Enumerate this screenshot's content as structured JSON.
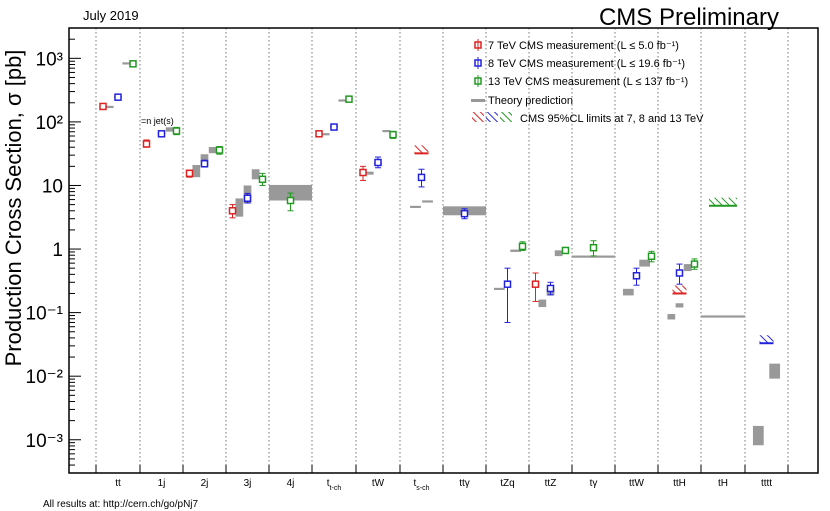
{
  "header": {
    "date": "July 2019",
    "title": "CMS Preliminary",
    "footer": "All results at: http://cern.ch/go/pNj7"
  },
  "colors": {
    "tev7": "#dd2222",
    "tev8": "#2222dd",
    "tev13": "#229922",
    "theory": "#999999",
    "frame": "#000000"
  },
  "legend": {
    "items": [
      {
        "key": "tev7",
        "label": "7 TeV CMS measurement (L ≤ 5.0 fb⁻¹)"
      },
      {
        "key": "tev8",
        "label": "8 TeV CMS measurement (L ≤ 19.6 fb⁻¹)"
      },
      {
        "key": "tev13",
        "label": "13 TeV CMS measurement (L ≤ 137 fb⁻¹)"
      },
      {
        "key": "theory",
        "label": "Theory prediction"
      },
      {
        "key": "limits",
        "label": "CMS 95%CL limits at 7, 8 and 13 TeV"
      }
    ],
    "placement": "top-right"
  },
  "chart_data": {
    "type": "scatter",
    "ylabel": "Production Cross Section,  σ [pb]",
    "yscale": "log",
    "ylim": [
      0.0003,
      3000
    ],
    "yticks": [
      "10⁻³",
      "10⁻²",
      "10⁻¹",
      "1",
      "10",
      "10²",
      "10³"
    ],
    "categories": [
      "tt",
      "1j",
      "2j",
      "3j",
      "4j",
      "tt-ch",
      "tW",
      "ts-ch",
      "ttγ",
      "tZq",
      "ttZ",
      "tγ",
      "ttW",
      "ttH",
      "tH",
      "tttt"
    ],
    "category_main": [
      "tt",
      "1j",
      "2j",
      "3j",
      "4j",
      "t",
      "tW",
      "t",
      "ttγ",
      "tZq",
      "ttZ",
      "tγ",
      "ttW",
      "ttH",
      "tH",
      "tttt"
    ],
    "category_sub": [
      "",
      "",
      "",
      "",
      "",
      "t-ch",
      "",
      "s-ch",
      "",
      "",
      "",
      "",
      "",
      "",
      "",
      ""
    ],
    "annotation": "=n jet(s)",
    "measurements": [
      {
        "cat": 0,
        "energy": "tev7",
        "value": 175,
        "up": 185,
        "down": 165
      },
      {
        "cat": 0,
        "energy": "tev8",
        "value": 245,
        "up": 260,
        "down": 232
      },
      {
        "cat": 0,
        "energy": "tev13",
        "value": 820,
        "up": 870,
        "down": 770
      },
      {
        "cat": 1,
        "energy": "tev7",
        "value": 45,
        "up": 52,
        "down": 40
      },
      {
        "cat": 1,
        "energy": "tev8",
        "value": 65,
        "up": 71,
        "down": 59
      },
      {
        "cat": 1,
        "energy": "tev13",
        "value": 72,
        "up": 82,
        "down": 63
      },
      {
        "cat": 2,
        "energy": "tev7",
        "value": 15.5,
        "up": 17.5,
        "down": 13.5
      },
      {
        "cat": 2,
        "energy": "tev8",
        "value": 22,
        "up": 25,
        "down": 19.5
      },
      {
        "cat": 2,
        "energy": "tev13",
        "value": 36,
        "up": 41,
        "down": 31
      },
      {
        "cat": 3,
        "energy": "tev7",
        "value": 4.0,
        "up": 5.0,
        "down": 3.1
      },
      {
        "cat": 3,
        "energy": "tev8",
        "value": 6.3,
        "up": 7.5,
        "down": 5.3
      },
      {
        "cat": 3,
        "energy": "tev13",
        "value": 12.5,
        "up": 15.5,
        "down": 10
      },
      {
        "cat": 4,
        "energy": "tev13",
        "value": 5.8,
        "up": 7.6,
        "down": 4.0
      },
      {
        "cat": 5,
        "energy": "tev7",
        "value": 65,
        "up": 71,
        "down": 59
      },
      {
        "cat": 5,
        "energy": "tev8",
        "value": 83,
        "up": 90,
        "down": 76
      },
      {
        "cat": 5,
        "energy": "tev13",
        "value": 228,
        "up": 250,
        "down": 205
      },
      {
        "cat": 6,
        "energy": "tev7",
        "value": 16,
        "up": 20,
        "down": 12
      },
      {
        "cat": 6,
        "energy": "tev8",
        "value": 23,
        "up": 28,
        "down": 19
      },
      {
        "cat": 6,
        "energy": "tev13",
        "value": 63,
        "up": 71,
        "down": 55
      },
      {
        "cat": 7,
        "energy": "tev8",
        "value": 13.4,
        "up": 18,
        "down": 9.5
      },
      {
        "cat": 8,
        "energy": "tev8",
        "value": 3.6,
        "up": 4.3,
        "down": 3.0
      },
      {
        "cat": 9,
        "energy": "tev8",
        "value": 0.28,
        "up": 0.5,
        "down": 0.07
      },
      {
        "cat": 9,
        "energy": "tev13",
        "value": 1.1,
        "up": 1.3,
        "down": 0.95
      },
      {
        "cat": 10,
        "energy": "tev7",
        "value": 0.28,
        "up": 0.42,
        "down": 0.15
      },
      {
        "cat": 10,
        "energy": "tev8",
        "value": 0.24,
        "up": 0.3,
        "down": 0.19
      },
      {
        "cat": 10,
        "energy": "tev13",
        "value": 0.95,
        "up": 1.05,
        "down": 0.86
      },
      {
        "cat": 11,
        "energy": "tev13",
        "value": 1.05,
        "up": 1.35,
        "down": 0.78
      },
      {
        "cat": 12,
        "energy": "tev8",
        "value": 0.38,
        "up": 0.5,
        "down": 0.27
      },
      {
        "cat": 12,
        "energy": "tev13",
        "value": 0.77,
        "up": 0.92,
        "down": 0.63
      },
      {
        "cat": 13,
        "energy": "tev8",
        "value": 0.42,
        "up": 0.58,
        "down": 0.28
      },
      {
        "cat": 13,
        "energy": "tev13",
        "value": 0.58,
        "up": 0.7,
        "down": 0.48
      }
    ],
    "limits": [
      {
        "cat": 7,
        "energy": "tev7",
        "value": 32
      },
      {
        "cat": 13,
        "energy": "tev7",
        "value": 0.2
      },
      {
        "cat": 14,
        "energy": "tev13",
        "value": 4.8
      },
      {
        "cat": 15,
        "energy": "tev8",
        "value": 0.033
      }
    ],
    "theory": [
      {
        "cat": 0,
        "offset": -0.38,
        "width": 0.36,
        "value": 172,
        "up": 175,
        "down": 169
      },
      {
        "cat": 0,
        "offset": 0.0,
        "width": 0.36,
        "value": 247,
        "up": 252,
        "down": 242
      },
      {
        "cat": 0,
        "offset": 0.38,
        "width": 0.36,
        "value": 832,
        "up": 850,
        "down": 815
      },
      {
        "cat": 1,
        "offset": 0.0,
        "width": 0.36,
        "value": 66,
        "up": 68,
        "down": 64
      },
      {
        "cat": 1,
        "offset": 0.38,
        "width": 0.36,
        "value": 76,
        "up": 82,
        "down": 70
      },
      {
        "cat": 2,
        "offset": -0.38,
        "width": 0.36,
        "value": 16.5,
        "up": 21,
        "down": 13.5
      },
      {
        "cat": 2,
        "offset": 0.0,
        "width": 0.36,
        "value": 24,
        "up": 31,
        "down": 20
      },
      {
        "cat": 2,
        "offset": 0.38,
        "width": 0.36,
        "value": 36,
        "up": 40,
        "down": 32
      },
      {
        "cat": 3,
        "offset": -0.38,
        "width": 0.36,
        "value": 4.5,
        "up": 6.2,
        "down": 3.2
      },
      {
        "cat": 3,
        "offset": 0.0,
        "width": 0.36,
        "value": 7.2,
        "up": 10,
        "down": 5.2
      },
      {
        "cat": 3,
        "offset": 0.38,
        "width": 0.36,
        "value": 15,
        "up": 18,
        "down": 12.5
      },
      {
        "cat": 4,
        "offset": 0.0,
        "width": 1.0,
        "value": 7.5,
        "up": 10.2,
        "down": 5.8
      },
      {
        "cat": 5,
        "offset": -0.38,
        "width": 0.36,
        "value": 64,
        "up": 66,
        "down": 62
      },
      {
        "cat": 5,
        "offset": 0.0,
        "width": 0.36,
        "value": 85,
        "up": 88,
        "down": 82
      },
      {
        "cat": 5,
        "offset": 0.38,
        "width": 0.36,
        "value": 217,
        "up": 225,
        "down": 210
      },
      {
        "cat": 6,
        "offset": -0.38,
        "width": 0.36,
        "value": 15.6,
        "up": 16.5,
        "down": 14.8
      },
      {
        "cat": 6,
        "offset": 0.0,
        "width": 0.36,
        "value": 22.2,
        "up": 23.2,
        "down": 21.2
      },
      {
        "cat": 6,
        "offset": 0.38,
        "width": 0.36,
        "value": 71.7,
        "up": 73.5,
        "down": 70
      },
      {
        "cat": 7,
        "offset": -0.28,
        "width": 0.5,
        "value": 4.6,
        "up": 4.75,
        "down": 4.45
      },
      {
        "cat": 7,
        "offset": 0.28,
        "width": 0.5,
        "value": 5.6,
        "up": 5.75,
        "down": 5.45
      },
      {
        "cat": 8,
        "offset": 0.0,
        "width": 1.0,
        "value": 3.97,
        "up": 4.7,
        "down": 3.4
      },
      {
        "cat": 9,
        "offset": -0.38,
        "width": 0.5,
        "value": 0.236,
        "up": 0.245,
        "down": 0.227
      },
      {
        "cat": 9,
        "offset": 0.38,
        "width": 0.5,
        "value": 0.94,
        "up": 0.98,
        "down": 0.9
      },
      {
        "cat": 10,
        "offset": -0.38,
        "width": 0.36,
        "value": 0.14,
        "up": 0.16,
        "down": 0.122
      },
      {
        "cat": 10,
        "offset": 0.0,
        "width": 0.36,
        "value": 0.21,
        "up": 0.235,
        "down": 0.185
      },
      {
        "cat": 10,
        "offset": 0.38,
        "width": 0.36,
        "value": 0.86,
        "up": 0.95,
        "down": 0.77
      },
      {
        "cat": 11,
        "offset": 0.0,
        "width": 1.0,
        "value": 0.76,
        "up": 0.78,
        "down": 0.74
      },
      {
        "cat": 12,
        "offset": -0.38,
        "width": 0.5,
        "value": 0.21,
        "up": 0.235,
        "down": 0.185
      },
      {
        "cat": 12,
        "offset": 0.38,
        "width": 0.5,
        "value": 0.6,
        "up": 0.68,
        "down": 0.53
      },
      {
        "cat": 13,
        "offset": -0.38,
        "width": 0.36,
        "value": 0.086,
        "up": 0.095,
        "down": 0.078
      },
      {
        "cat": 13,
        "offset": 0.0,
        "width": 0.36,
        "value": 0.13,
        "up": 0.14,
        "down": 0.12
      },
      {
        "cat": 13,
        "offset": 0.38,
        "width": 0.36,
        "value": 0.51,
        "up": 0.58,
        "down": 0.45
      },
      {
        "cat": 14,
        "offset": 0.0,
        "width": 1.0,
        "value": 0.0868,
        "up": 0.0885,
        "down": 0.085
      },
      {
        "cat": 15,
        "offset": -0.38,
        "width": 0.5,
        "value": 0.00115,
        "up": 0.00165,
        "down": 0.00082
      },
      {
        "cat": 15,
        "offset": 0.38,
        "width": 0.5,
        "value": 0.012,
        "up": 0.0155,
        "down": 0.009
      }
    ]
  }
}
